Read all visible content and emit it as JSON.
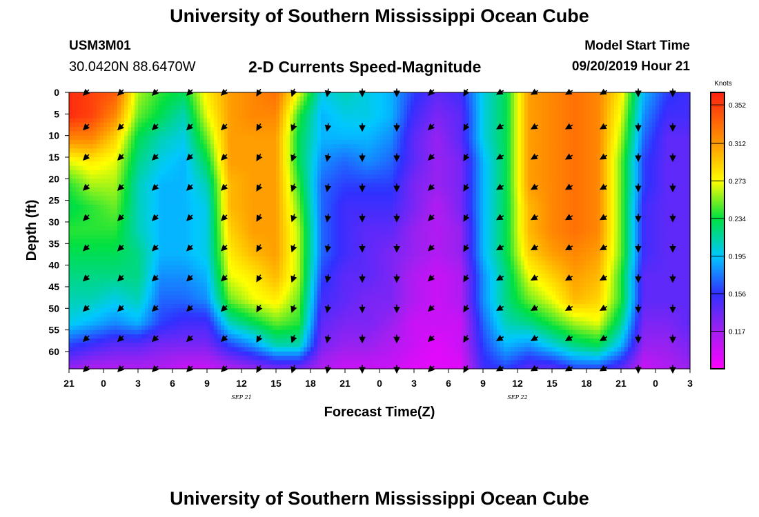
{
  "header": {
    "title_top": "University of Southern Mississippi Ocean Cube",
    "title_bottom": "University of Southern Mississippi Ocean Cube",
    "station_id": "USM3M01",
    "station_coords": "30.0420N 88.6470W",
    "subtitle": "2-D Currents Speed-Magnitude",
    "model_start_label": "Model Start Time",
    "model_start_value": "09/20/2019 Hour 21"
  },
  "chart_data": {
    "type": "heatmap",
    "title": "2-D Currents Speed-Magnitude",
    "xlabel": "Forecast Time(Z)",
    "ylabel": "Depth (ft)",
    "x_hours": [
      0,
      3,
      6,
      9,
      12,
      15,
      18,
      21,
      24,
      27,
      30,
      33,
      36,
      39,
      42,
      45,
      48,
      51,
      54
    ],
    "x_tick_labels": [
      "21",
      "0",
      "3",
      "6",
      "9",
      "12",
      "15",
      "18",
      "21",
      "0",
      "3",
      "6",
      "9",
      "12",
      "15",
      "18",
      "21",
      "0",
      "3"
    ],
    "date_labels": [
      {
        "text": "SEP 21",
        "hour": 15
      },
      {
        "text": "SEP 22",
        "hour": 39
      }
    ],
    "y_depths": [
      0,
      5,
      10,
      15,
      20,
      25,
      30,
      35,
      40,
      45,
      50,
      55,
      60,
      64
    ],
    "y_tick_labels": [
      "0",
      "5",
      "10",
      "15",
      "20",
      "25",
      "30",
      "35",
      "40",
      "45",
      "50",
      "55",
      "60"
    ],
    "ylim": [
      0,
      64
    ],
    "xlim": [
      0,
      54
    ],
    "speed_knots": [
      [
        0.36,
        0.36,
        0.32,
        0.27,
        0.24,
        0.23,
        0.24,
        0.23,
        0.22,
        0.21,
        0.2,
        0.16,
        0.12
      ],
      [
        0.35,
        0.35,
        0.32,
        0.28,
        0.26,
        0.24,
        0.24,
        0.23,
        0.22,
        0.21,
        0.19,
        0.15,
        0.11
      ],
      [
        0.34,
        0.32,
        0.29,
        0.27,
        0.26,
        0.25,
        0.24,
        0.23,
        0.22,
        0.2,
        0.18,
        0.14,
        0.11
      ],
      [
        0.26,
        0.25,
        0.23,
        0.22,
        0.21,
        0.21,
        0.21,
        0.22,
        0.22,
        0.21,
        0.19,
        0.14,
        0.11
      ],
      [
        0.24,
        0.23,
        0.21,
        0.2,
        0.19,
        0.19,
        0.19,
        0.19,
        0.18,
        0.17,
        0.16,
        0.13,
        0.11
      ],
      [
        0.23,
        0.21,
        0.2,
        0.19,
        0.19,
        0.19,
        0.19,
        0.19,
        0.18,
        0.17,
        0.15,
        0.13,
        0.1
      ],
      [
        0.28,
        0.27,
        0.25,
        0.23,
        0.21,
        0.2,
        0.2,
        0.2,
        0.19,
        0.18,
        0.15,
        0.13,
        0.1
      ],
      [
        0.31,
        0.31,
        0.31,
        0.31,
        0.3,
        0.3,
        0.29,
        0.28,
        0.27,
        0.25,
        0.21,
        0.16,
        0.11
      ],
      [
        0.32,
        0.32,
        0.31,
        0.31,
        0.31,
        0.31,
        0.31,
        0.3,
        0.28,
        0.27,
        0.23,
        0.18,
        0.12
      ],
      [
        0.33,
        0.32,
        0.31,
        0.31,
        0.31,
        0.31,
        0.31,
        0.31,
        0.3,
        0.28,
        0.25,
        0.21,
        0.13
      ],
      [
        0.27,
        0.24,
        0.23,
        0.23,
        0.24,
        0.25,
        0.26,
        0.26,
        0.26,
        0.25,
        0.24,
        0.21,
        0.13
      ],
      [
        0.2,
        0.19,
        0.19,
        0.18,
        0.17,
        0.17,
        0.17,
        0.17,
        0.16,
        0.15,
        0.14,
        0.13,
        0.11
      ],
      [
        0.21,
        0.2,
        0.19,
        0.17,
        0.16,
        0.15,
        0.15,
        0.15,
        0.14,
        0.14,
        0.13,
        0.12,
        0.1
      ],
      [
        0.2,
        0.2,
        0.19,
        0.18,
        0.16,
        0.15,
        0.14,
        0.14,
        0.14,
        0.13,
        0.13,
        0.12,
        0.1
      ],
      [
        0.19,
        0.19,
        0.18,
        0.17,
        0.16,
        0.15,
        0.14,
        0.13,
        0.13,
        0.13,
        0.12,
        0.11,
        0.1
      ],
      [
        0.16,
        0.15,
        0.14,
        0.14,
        0.13,
        0.13,
        0.12,
        0.12,
        0.11,
        0.11,
        0.1,
        0.1,
        0.09
      ],
      [
        0.14,
        0.13,
        0.12,
        0.12,
        0.12,
        0.11,
        0.11,
        0.11,
        0.1,
        0.1,
        0.1,
        0.09,
        0.09
      ],
      [
        0.15,
        0.14,
        0.14,
        0.13,
        0.13,
        0.13,
        0.12,
        0.12,
        0.11,
        0.11,
        0.1,
        0.1,
        0.09
      ],
      [
        0.2,
        0.2,
        0.2,
        0.19,
        0.19,
        0.19,
        0.19,
        0.19,
        0.18,
        0.18,
        0.17,
        0.16,
        0.15
      ],
      [
        0.23,
        0.23,
        0.23,
        0.23,
        0.23,
        0.23,
        0.23,
        0.23,
        0.22,
        0.22,
        0.21,
        0.19,
        0.16
      ],
      [
        0.31,
        0.31,
        0.31,
        0.31,
        0.31,
        0.3,
        0.3,
        0.29,
        0.27,
        0.25,
        0.22,
        0.18,
        0.14
      ],
      [
        0.32,
        0.32,
        0.32,
        0.32,
        0.32,
        0.32,
        0.32,
        0.31,
        0.29,
        0.27,
        0.24,
        0.2,
        0.14
      ],
      [
        0.33,
        0.33,
        0.33,
        0.33,
        0.33,
        0.33,
        0.33,
        0.32,
        0.31,
        0.3,
        0.26,
        0.22,
        0.16
      ],
      [
        0.32,
        0.32,
        0.32,
        0.32,
        0.32,
        0.32,
        0.32,
        0.31,
        0.3,
        0.29,
        0.27,
        0.23,
        0.16
      ],
      [
        0.28,
        0.27,
        0.26,
        0.25,
        0.25,
        0.25,
        0.25,
        0.25,
        0.24,
        0.24,
        0.22,
        0.19,
        0.14
      ],
      [
        0.19,
        0.18,
        0.17,
        0.16,
        0.16,
        0.15,
        0.15,
        0.15,
        0.14,
        0.14,
        0.13,
        0.12,
        0.1
      ],
      [
        0.16,
        0.15,
        0.14,
        0.14,
        0.14,
        0.14,
        0.14,
        0.14,
        0.14,
        0.14,
        0.13,
        0.12,
        0.11
      ],
      [
        0.15,
        0.15,
        0.14,
        0.14,
        0.14,
        0.14,
        0.14,
        0.14,
        0.14,
        0.14,
        0.14,
        0.13,
        0.12
      ]
    ],
    "vector_times_hours": [
      1.5,
      4.5,
      7.5,
      10.5,
      13.5,
      16.5,
      19.5,
      22.5,
      25.5,
      28.5,
      31.5,
      34.5,
      37.5,
      40.5,
      43.5,
      46.5,
      49.5,
      52.5
    ],
    "vector_depths": [
      0,
      8,
      15,
      22,
      29,
      36,
      43,
      50,
      57,
      64
    ],
    "vector_directions_deg": [
      225,
      225,
      225,
      225,
      225,
      210,
      200,
      190,
      180,
      180,
      225,
      210,
      240,
      240,
      240,
      240,
      180,
      180
    ],
    "colorbar": {
      "label": "Knots",
      "min": 0.078,
      "max": 0.365,
      "tick_values": [
        0.117,
        0.156,
        0.195,
        0.234,
        0.273,
        0.312,
        0.352
      ],
      "tick_labels": [
        "0.117",
        "0.156",
        "0.195",
        "0.234",
        "0.273",
        "0.312",
        "0.352"
      ],
      "stops": [
        {
          "value": 0.078,
          "color": "#ff00ff"
        },
        {
          "value": 0.117,
          "color": "#a020f0"
        },
        {
          "value": 0.156,
          "color": "#3030ff"
        },
        {
          "value": 0.195,
          "color": "#00c8ff"
        },
        {
          "value": 0.234,
          "color": "#00e040"
        },
        {
          "value": 0.273,
          "color": "#ffff00"
        },
        {
          "value": 0.312,
          "color": "#ff9900"
        },
        {
          "value": 0.365,
          "color": "#ff2010"
        }
      ]
    }
  }
}
